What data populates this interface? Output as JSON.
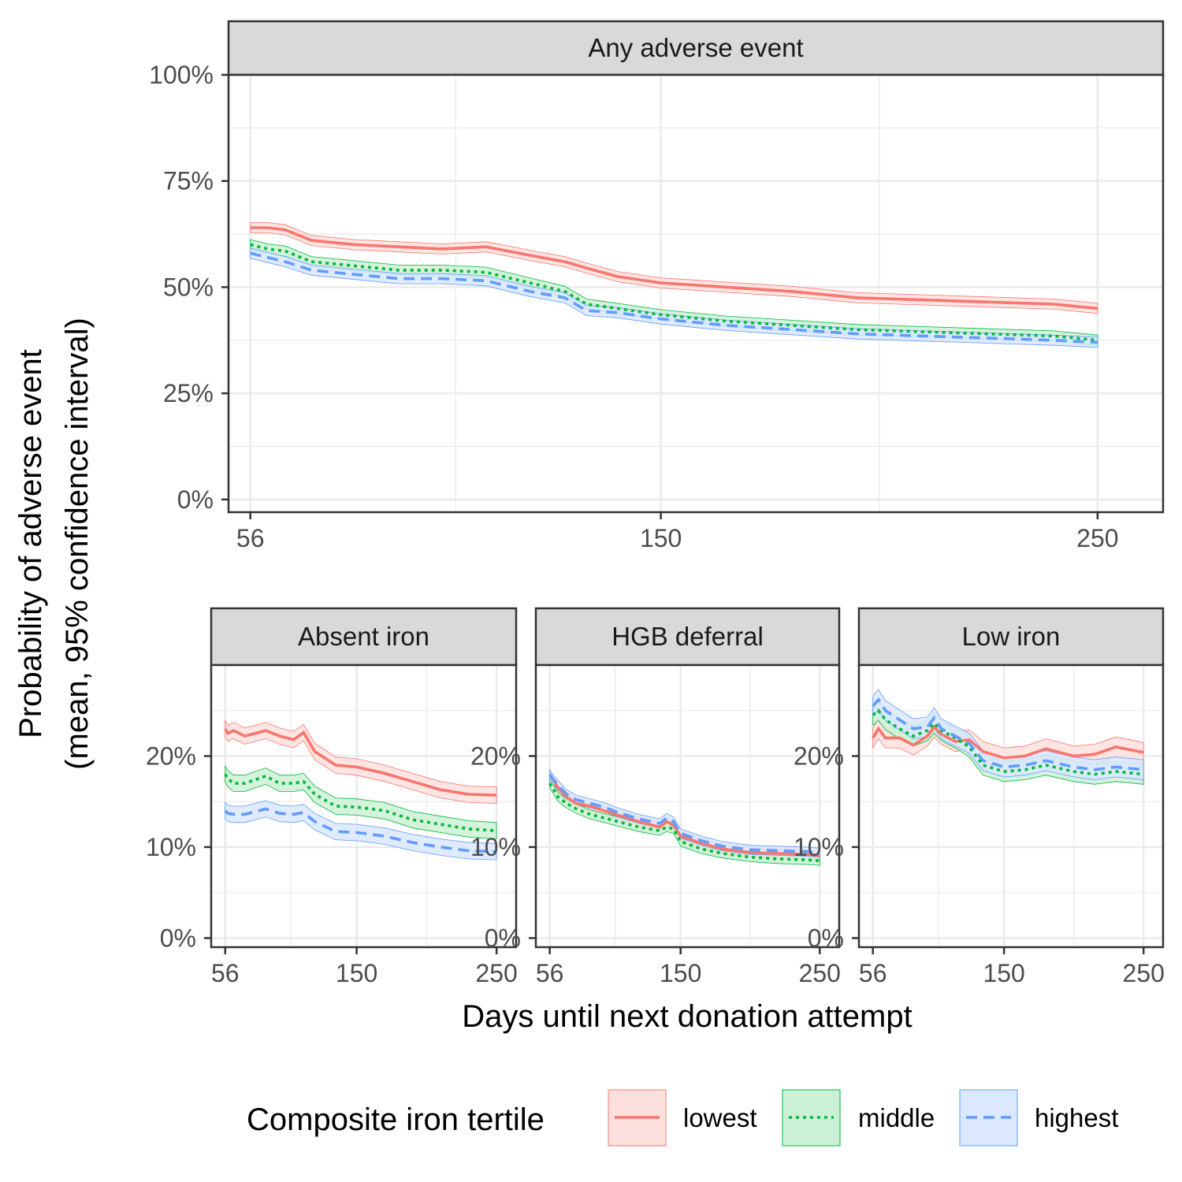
{
  "chart_data": {
    "type": "line",
    "ylabel_line1": "Probability of adverse event",
    "ylabel_line2": "(mean, 95% confidence interval)",
    "xlabel": "Days until next donation attempt",
    "legend": {
      "title": "Composite iron tertile",
      "placement": "bottom",
      "entries": [
        {
          "key": "lowest",
          "label": "lowest",
          "color": "#f8766d",
          "fill": "#fde0de",
          "dash": "solid"
        },
        {
          "key": "middle",
          "label": "middle",
          "color": "#00ba38",
          "fill": "#ccf0d6",
          "dash": "dotted"
        },
        {
          "key": "highest",
          "label": "highest",
          "color": "#619cff",
          "fill": "#dbe8ff",
          "dash": "dashed"
        }
      ]
    },
    "grid": true,
    "panels": [
      {
        "title": "Any adverse event",
        "xlim": [
          51,
          265
        ],
        "ylim": [
          -0.03,
          1.0
        ],
        "x_ticks": [
          56,
          150,
          250
        ],
        "x_tick_labels": [
          "56",
          "150",
          "250"
        ],
        "y_ticks": [
          0,
          0.25,
          0.5,
          0.75,
          1.0
        ],
        "y_tick_labels": [
          "0%",
          "25%",
          "50%",
          "75%",
          "100%"
        ],
        "ci_halfwidth": 0.012,
        "x": [
          56,
          60,
          64,
          70,
          80,
          90,
          100,
          110,
          120,
          128,
          133,
          140,
          150,
          165,
          180,
          195,
          210,
          225,
          240,
          250
        ],
        "series": [
          {
            "name": "lowest",
            "values": [
              0.64,
              0.64,
              0.635,
              0.61,
              0.6,
              0.595,
              0.59,
              0.595,
              0.575,
              0.56,
              0.545,
              0.525,
              0.51,
              0.5,
              0.49,
              0.475,
              0.47,
              0.465,
              0.46,
              0.45
            ]
          },
          {
            "name": "middle",
            "values": [
              0.6,
              0.59,
              0.585,
              0.56,
              0.55,
              0.54,
              0.54,
              0.535,
              0.51,
              0.49,
              0.46,
              0.45,
              0.435,
              0.42,
              0.41,
              0.4,
              0.395,
              0.39,
              0.385,
              0.375
            ]
          },
          {
            "name": "highest",
            "values": [
              0.58,
              0.57,
              0.56,
              0.54,
              0.53,
              0.52,
              0.52,
              0.515,
              0.49,
              0.475,
              0.445,
              0.44,
              0.425,
              0.41,
              0.4,
              0.39,
              0.385,
              0.38,
              0.375,
              0.37
            ]
          }
        ]
      },
      {
        "title": "Absent iron",
        "xlim": [
          46,
          264
        ],
        "ylim": [
          -0.01,
          0.3
        ],
        "x_ticks": [
          56,
          150,
          250
        ],
        "x_tick_labels": [
          "56",
          "150",
          "250"
        ],
        "y_ticks": [
          0,
          0.1,
          0.2
        ],
        "y_tick_labels": [
          "0%",
          "10%",
          "20%"
        ],
        "ci_halfwidth": 0.009,
        "x": [
          56,
          58,
          62,
          70,
          85,
          95,
          105,
          112,
          120,
          135,
          150,
          170,
          190,
          210,
          230,
          250
        ],
        "series": [
          {
            "name": "lowest",
            "values": [
              0.23,
              0.225,
              0.228,
              0.222,
              0.228,
              0.222,
              0.218,
              0.226,
              0.205,
              0.19,
              0.188,
              0.181,
              0.172,
              0.163,
              0.158,
              0.157
            ]
          },
          {
            "name": "middle",
            "values": [
              0.18,
              0.175,
              0.17,
              0.17,
              0.178,
              0.17,
              0.17,
              0.172,
              0.158,
              0.145,
              0.144,
              0.14,
              0.13,
              0.125,
              0.12,
              0.118
            ]
          },
          {
            "name": "highest",
            "values": [
              0.14,
              0.137,
              0.136,
              0.136,
              0.142,
              0.137,
              0.136,
              0.138,
              0.128,
              0.117,
              0.116,
              0.112,
              0.105,
              0.1,
              0.096,
              0.095
            ]
          }
        ]
      },
      {
        "title": "HGB deferral",
        "xlim": [
          46,
          264
        ],
        "ylim": [
          -0.01,
          0.3
        ],
        "x_ticks": [
          56,
          150,
          250
        ],
        "x_tick_labels": [
          "56",
          "150",
          "250"
        ],
        "y_ticks": [
          0,
          0.1,
          0.2
        ],
        "y_tick_labels": [
          "0%",
          "10%",
          "20%"
        ],
        "ci_halfwidth": 0.005,
        "x": [
          56,
          58,
          62,
          68,
          75,
          85,
          95,
          105,
          120,
          135,
          140,
          145,
          150,
          165,
          180,
          200,
          220,
          240,
          250
        ],
        "series": [
          {
            "name": "lowest",
            "values": [
              0.18,
              0.175,
              0.165,
              0.155,
              0.148,
              0.145,
              0.14,
              0.135,
              0.128,
              0.122,
              0.128,
              0.124,
              0.112,
              0.104,
              0.098,
              0.094,
              0.093,
              0.092,
              0.091
            ]
          },
          {
            "name": "middle",
            "values": [
              0.17,
              0.165,
              0.155,
              0.148,
              0.142,
              0.136,
              0.132,
              0.128,
              0.122,
              0.118,
              0.122,
              0.12,
              0.106,
              0.098,
              0.093,
              0.089,
              0.087,
              0.086,
              0.085
            ]
          },
          {
            "name": "highest",
            "values": [
              0.18,
              0.175,
              0.168,
              0.158,
              0.152,
              0.148,
              0.144,
              0.138,
              0.131,
              0.126,
              0.132,
              0.128,
              0.115,
              0.107,
              0.101,
              0.097,
              0.096,
              0.095,
              0.094
            ]
          }
        ]
      },
      {
        "title": "Low iron",
        "xlim": [
          46,
          264
        ],
        "ylim": [
          -0.01,
          0.3
        ],
        "x_ticks": [
          56,
          150,
          250
        ],
        "x_tick_labels": [
          "56",
          "150",
          "250"
        ],
        "y_ticks": [
          0,
          0.1,
          0.2
        ],
        "y_tick_labels": [
          "0%",
          "10%",
          "20%"
        ],
        "ci_halfwidth": 0.011,
        "x": [
          56,
          60,
          65,
          75,
          85,
          95,
          100,
          105,
          115,
          125,
          135,
          150,
          165,
          180,
          200,
          215,
          230,
          250
        ],
        "series": [
          {
            "name": "lowest",
            "values": [
              0.22,
              0.23,
              0.22,
              0.22,
              0.212,
              0.222,
              0.232,
              0.224,
              0.216,
              0.218,
              0.205,
              0.198,
              0.2,
              0.208,
              0.2,
              0.202,
              0.21,
              0.204
            ]
          },
          {
            "name": "middle",
            "values": [
              0.245,
              0.25,
              0.24,
              0.23,
              0.222,
              0.228,
              0.236,
              0.228,
              0.22,
              0.21,
              0.19,
              0.183,
              0.185,
              0.19,
              0.183,
              0.18,
              0.183,
              0.18
            ]
          },
          {
            "name": "highest",
            "values": [
              0.255,
              0.262,
              0.25,
              0.24,
              0.23,
              0.232,
              0.242,
              0.23,
              0.222,
              0.214,
              0.195,
              0.188,
              0.19,
              0.195,
              0.188,
              0.185,
              0.188,
              0.185
            ]
          }
        ]
      }
    ]
  }
}
